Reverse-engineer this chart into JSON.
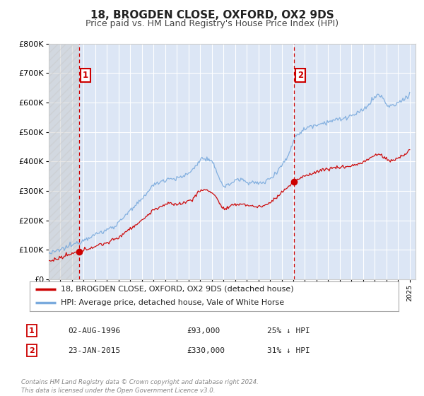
{
  "title": "18, BROGDEN CLOSE, OXFORD, OX2 9DS",
  "subtitle": "Price paid vs. HM Land Registry's House Price Index (HPI)",
  "legend_entry1": "18, BROGDEN CLOSE, OXFORD, OX2 9DS (detached house)",
  "legend_entry2": "HPI: Average price, detached house, Vale of White Horse",
  "annotation1_label": "1",
  "annotation1_date": "02-AUG-1996",
  "annotation1_price": "£93,000",
  "annotation1_hpi": "25% ↓ HPI",
  "annotation2_label": "2",
  "annotation2_date": "23-JAN-2015",
  "annotation2_price": "£330,000",
  "annotation2_hpi": "31% ↓ HPI",
  "sale1_year": 1996.58,
  "sale1_price": 93000,
  "sale2_year": 2015.05,
  "sale2_price": 330000,
  "vline1_year": 1996.58,
  "vline2_year": 2015.05,
  "ymax": 800000,
  "plot_bg_color": "#dce6f5",
  "grid_color": "#ffffff",
  "red_line_color": "#cc0000",
  "blue_line_color": "#7aaadd",
  "vline_color": "#cc0000",
  "hatch_color": "#bbbbbb",
  "fig_bg_color": "#ffffff",
  "footer_text": "Contains HM Land Registry data © Crown copyright and database right 2024.\nThis data is licensed under the Open Government Licence v3.0.",
  "copyright_color": "#888888",
  "hpi_keypoints": [
    [
      1994.0,
      88000
    ],
    [
      1994.5,
      92000
    ],
    [
      1995.0,
      100000
    ],
    [
      1995.5,
      108000
    ],
    [
      1996.0,
      116000
    ],
    [
      1996.5,
      124000
    ],
    [
      1997.0,
      134000
    ],
    [
      1997.5,
      144000
    ],
    [
      1998.0,
      152000
    ],
    [
      1998.5,
      158000
    ],
    [
      1999.0,
      168000
    ],
    [
      1999.5,
      178000
    ],
    [
      2000.0,
      192000
    ],
    [
      2000.5,
      215000
    ],
    [
      2001.0,
      232000
    ],
    [
      2001.5,
      250000
    ],
    [
      2002.0,
      272000
    ],
    [
      2002.5,
      298000
    ],
    [
      2003.0,
      318000
    ],
    [
      2003.5,
      330000
    ],
    [
      2004.0,
      338000
    ],
    [
      2004.5,
      342000
    ],
    [
      2005.0,
      342000
    ],
    [
      2005.5,
      348000
    ],
    [
      2006.0,
      360000
    ],
    [
      2006.5,
      378000
    ],
    [
      2007.0,
      405000
    ],
    [
      2007.5,
      408000
    ],
    [
      2008.0,
      395000
    ],
    [
      2008.5,
      360000
    ],
    [
      2009.0,
      318000
    ],
    [
      2009.5,
      322000
    ],
    [
      2010.0,
      335000
    ],
    [
      2010.5,
      338000
    ],
    [
      2011.0,
      332000
    ],
    [
      2011.5,
      328000
    ],
    [
      2012.0,
      325000
    ],
    [
      2012.5,
      330000
    ],
    [
      2013.0,
      342000
    ],
    [
      2013.5,
      362000
    ],
    [
      2014.0,
      388000
    ],
    [
      2014.5,
      415000
    ],
    [
      2015.0,
      468000
    ],
    [
      2015.05,
      475000
    ],
    [
      2015.5,
      495000
    ],
    [
      2016.0,
      510000
    ],
    [
      2016.5,
      520000
    ],
    [
      2017.0,
      525000
    ],
    [
      2017.5,
      530000
    ],
    [
      2018.0,
      535000
    ],
    [
      2018.5,
      540000
    ],
    [
      2019.0,
      542000
    ],
    [
      2019.5,
      548000
    ],
    [
      2020.0,
      555000
    ],
    [
      2020.5,
      562000
    ],
    [
      2021.0,
      575000
    ],
    [
      2021.5,
      595000
    ],
    [
      2022.0,
      618000
    ],
    [
      2022.5,
      622000
    ],
    [
      2023.0,
      595000
    ],
    [
      2023.5,
      588000
    ],
    [
      2024.0,
      598000
    ],
    [
      2024.5,
      612000
    ],
    [
      2025.0,
      628000
    ]
  ],
  "red_keypoints": [
    [
      1994.0,
      62000
    ],
    [
      1994.5,
      66000
    ],
    [
      1995.0,
      72000
    ],
    [
      1995.5,
      79000
    ],
    [
      1996.0,
      86000
    ],
    [
      1996.58,
      93000
    ],
    [
      1997.0,
      98000
    ],
    [
      1997.5,
      106000
    ],
    [
      1998.0,
      112000
    ],
    [
      1998.5,
      118000
    ],
    [
      1999.0,
      124000
    ],
    [
      1999.5,
      132000
    ],
    [
      2000.0,
      142000
    ],
    [
      2000.5,
      158000
    ],
    [
      2001.0,
      172000
    ],
    [
      2001.5,
      185000
    ],
    [
      2002.0,
      200000
    ],
    [
      2002.5,
      218000
    ],
    [
      2003.0,
      234000
    ],
    [
      2003.5,
      245000
    ],
    [
      2004.0,
      252000
    ],
    [
      2004.5,
      256000
    ],
    [
      2005.0,
      255000
    ],
    [
      2005.5,
      258000
    ],
    [
      2006.0,
      266000
    ],
    [
      2006.5,
      278000
    ],
    [
      2007.0,
      300000
    ],
    [
      2007.5,
      302000
    ],
    [
      2008.0,
      295000
    ],
    [
      2008.5,
      270000
    ],
    [
      2009.0,
      240000
    ],
    [
      2009.5,
      244000
    ],
    [
      2010.0,
      252000
    ],
    [
      2010.5,
      256000
    ],
    [
      2011.0,
      252000
    ],
    [
      2011.5,
      248000
    ],
    [
      2012.0,
      246000
    ],
    [
      2012.5,
      250000
    ],
    [
      2013.0,
      260000
    ],
    [
      2013.5,
      276000
    ],
    [
      2014.0,
      295000
    ],
    [
      2014.5,
      312000
    ],
    [
      2015.0,
      328000
    ],
    [
      2015.05,
      330000
    ],
    [
      2015.5,
      340000
    ],
    [
      2016.0,
      350000
    ],
    [
      2016.5,
      358000
    ],
    [
      2017.0,
      365000
    ],
    [
      2017.5,
      370000
    ],
    [
      2018.0,
      375000
    ],
    [
      2018.5,
      378000
    ],
    [
      2019.0,
      380000
    ],
    [
      2019.5,
      382000
    ],
    [
      2020.0,
      385000
    ],
    [
      2020.5,
      390000
    ],
    [
      2021.0,
      398000
    ],
    [
      2021.5,
      408000
    ],
    [
      2022.0,
      420000
    ],
    [
      2022.5,
      422000
    ],
    [
      2023.0,
      408000
    ],
    [
      2023.5,
      402000
    ],
    [
      2024.0,
      412000
    ],
    [
      2024.5,
      422000
    ],
    [
      2025.0,
      438000
    ]
  ]
}
